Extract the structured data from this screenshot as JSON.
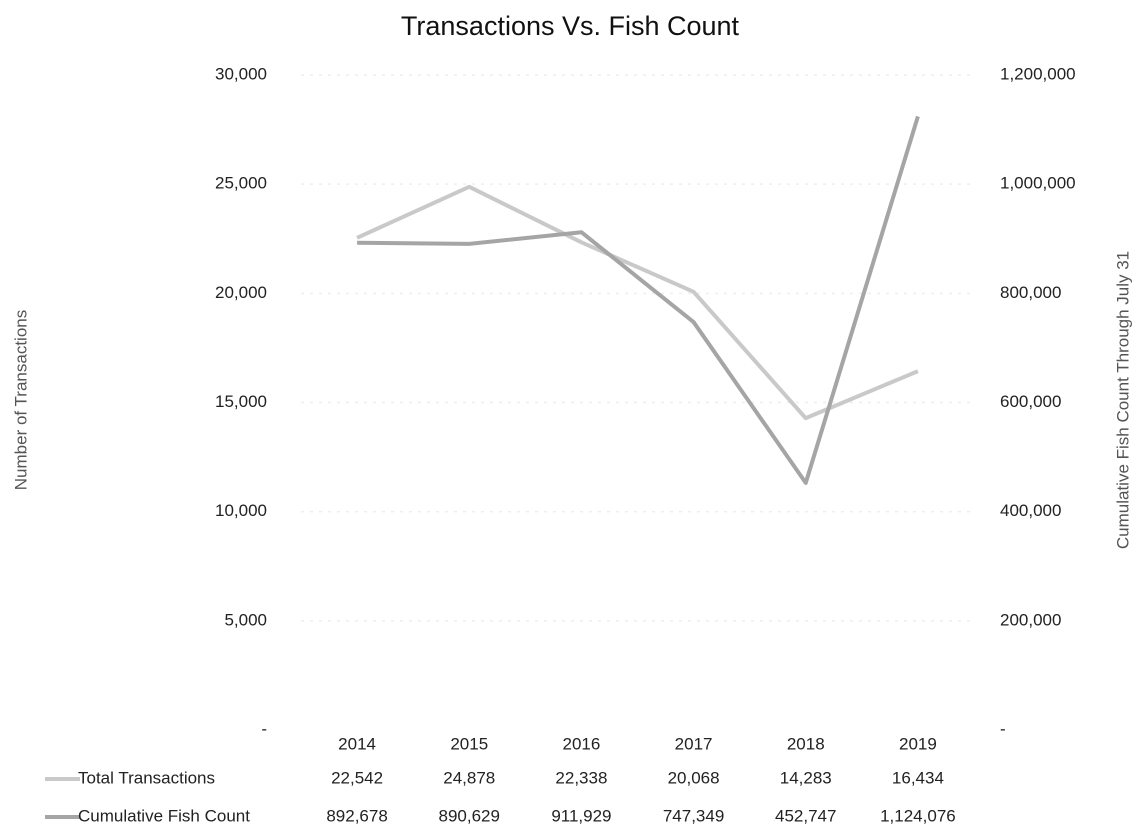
{
  "chart_data": {
    "type": "line",
    "title": "Transactions Vs. Fish Count",
    "y_label": "Number of Transactions",
    "y2_label": "Cumulative Fish Count Through July 31",
    "categories": [
      "2014",
      "2015",
      "2016",
      "2017",
      "2018",
      "2019"
    ],
    "series": [
      {
        "name": "Total Transactions",
        "color": "#c9c9c9",
        "values": [
          22542,
          24878,
          22338,
          20068,
          14283,
          16434
        ],
        "value_labels": [
          "22,542",
          "24,878",
          "22,338",
          "20,068",
          "14,283",
          "16,434"
        ]
      },
      {
        "name": "Cumulative Fish Count",
        "color": "#a5a5a5",
        "axis": "y2",
        "values": [
          892678,
          890629,
          911929,
          747349,
          452747,
          1124076
        ],
        "value_labels": [
          "892,678",
          "890,629",
          "911,929",
          "747,349",
          "452,747",
          "1,124,076"
        ]
      }
    ],
    "ylim": [
      0,
      30000
    ],
    "yticks": [
      {
        "value": 0,
        "label": "-"
      },
      {
        "value": 5000,
        "label": "5,000"
      },
      {
        "value": 10000,
        "label": "10,000"
      },
      {
        "value": 15000,
        "label": "15,000"
      },
      {
        "value": 20000,
        "label": "20,000"
      },
      {
        "value": 25000,
        "label": "25,000"
      },
      {
        "value": 30000,
        "label": "30,000"
      }
    ],
    "y2lim": [
      0,
      1200000
    ],
    "y2ticks": [
      {
        "value": 0,
        "label": "-"
      },
      {
        "value": 200000,
        "label": "200,000"
      },
      {
        "value": 400000,
        "label": "400,000"
      },
      {
        "value": 600000,
        "label": "600,000"
      },
      {
        "value": 800000,
        "label": "800,000"
      },
      {
        "value": 1000000,
        "label": "1,000,000"
      },
      {
        "value": 1200000,
        "label": "1,200,000"
      }
    ],
    "grid": true
  }
}
